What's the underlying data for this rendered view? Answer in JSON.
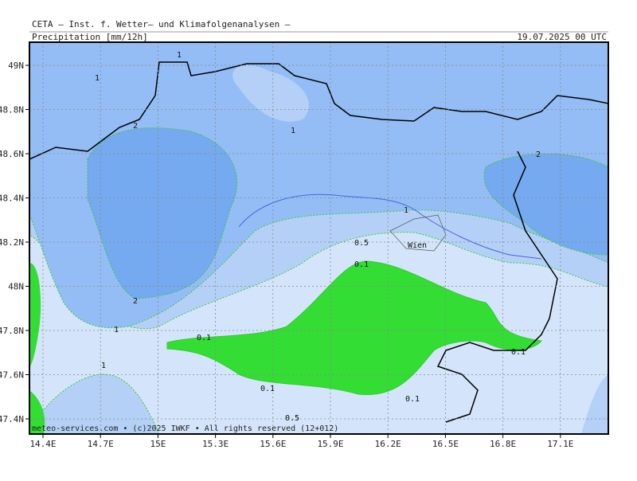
{
  "header": {
    "institute": "CETA – Inst. f. Wetter– und Klimafolgenanalysen –",
    "variable": "Precipitation [mm/12h]",
    "date": "19.07.2025 00 UTC"
  },
  "axes": {
    "lat": [
      "49N",
      "48.8N",
      "48.6N",
      "48.4N",
      "48.2N",
      "48N",
      "47.8N",
      "47.6N",
      "47.4N"
    ],
    "lon": [
      "14.4E",
      "14.7E",
      "15E",
      "15.3E",
      "15.6E",
      "15.9E",
      "16.2E",
      "16.5E",
      "16.8E",
      "17.1E"
    ]
  },
  "map": {
    "city": "Wien",
    "contour_labels": [
      "1",
      "1",
      "2",
      "1",
      "2",
      "1",
      "0.5",
      "0.1",
      "2",
      "1",
      "0.1",
      "1",
      "0.1",
      "0.1",
      "0.1",
      "0.5"
    ]
  },
  "footer": "meteo-services.com • (c)2025 IWKF • All rights reserved (12+012)"
}
